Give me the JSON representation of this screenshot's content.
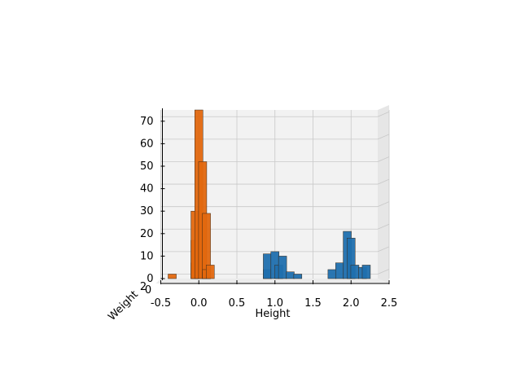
{
  "chart_data": {
    "type": "bar",
    "view": "3d-histogram",
    "xlabel": "Height",
    "ylabel": "Weight",
    "zlabel": "",
    "xlim": [
      -0.5,
      2.5
    ],
    "zlim": [
      0,
      75
    ],
    "xticks": [
      "-0.5",
      "0.0",
      "0.5",
      "1.0",
      "1.5",
      "2.0",
      "2.5"
    ],
    "zticks": [
      "0",
      "10",
      "20",
      "30",
      "40",
      "50",
      "60",
      "70"
    ],
    "yticks_visible": [
      "2",
      "0"
    ],
    "grid": true,
    "series": [
      {
        "color": "#e2670e",
        "bins": [
          {
            "x": -0.35,
            "count": 2
          },
          {
            "x": -0.05,
            "count": 7
          },
          {
            "x": -0.05,
            "count": 17
          },
          {
            "x": -0.05,
            "count": 30
          },
          {
            "x": 0.0,
            "count": 75
          },
          {
            "x": 0.05,
            "count": 52
          },
          {
            "x": 0.1,
            "count": 3
          },
          {
            "x": 0.1,
            "count": 29
          },
          {
            "x": 0.1,
            "count": 4
          },
          {
            "x": 0.15,
            "count": 6
          }
        ]
      },
      {
        "color": "#1f6fae",
        "bins": [
          {
            "x": 0.9,
            "count": 4
          },
          {
            "x": 0.9,
            "count": 11
          },
          {
            "x": 1.0,
            "count": 12
          },
          {
            "x": 1.05,
            "count": 6
          },
          {
            "x": 1.1,
            "count": 10
          },
          {
            "x": 1.2,
            "count": 3
          },
          {
            "x": 1.3,
            "count": 2
          },
          {
            "x": 1.75,
            "count": 4
          },
          {
            "x": 1.85,
            "count": 7
          },
          {
            "x": 1.95,
            "count": 21
          },
          {
            "x": 2.0,
            "count": 18
          },
          {
            "x": 2.05,
            "count": 6
          },
          {
            "x": 2.15,
            "count": 5
          },
          {
            "x": 2.2,
            "count": 6
          }
        ]
      }
    ]
  }
}
